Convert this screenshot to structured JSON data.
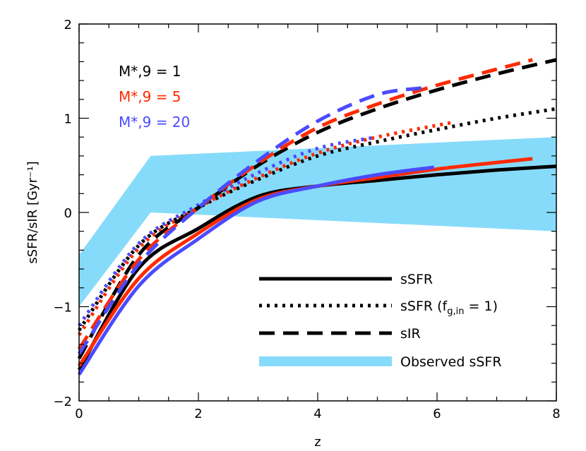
{
  "chart_data": {
    "type": "line",
    "xlabel": "z",
    "ylabel": "sSFR/sIR [Gyr⁻¹]",
    "xlim": [
      0,
      8
    ],
    "ylim": [
      -2,
      2
    ],
    "xticks": [
      "0",
      "2",
      "4",
      "6",
      "8"
    ],
    "yticks": [
      "−2",
      "−1",
      "0",
      "1",
      "2"
    ],
    "xtick_values": [
      0,
      2,
      4,
      6,
      8
    ],
    "ytick_values": [
      -2,
      -1,
      0,
      1,
      2
    ],
    "grid": false,
    "mass_labels": [
      {
        "text": "M*,9 = 1",
        "base": "M",
        "sub": "*,9",
        "rest": " = 1",
        "color": "#000000"
      },
      {
        "text": "M*,9 = 5",
        "base": "M",
        "sub": "*,9",
        "rest": " = 5",
        "color": "#ff2a00"
      },
      {
        "text": "M*,9 = 20",
        "base": "M",
        "sub": "*,9",
        "rest": " = 20",
        "color": "#4b4bff"
      }
    ],
    "legend": {
      "placement": "bottom-right",
      "entries": [
        {
          "label": "sSFR",
          "style": "solid"
        },
        {
          "label": "sSFR (fg,in = 1)",
          "pre": "sSFR (f",
          "sub": "g,in",
          "post": " = 1)",
          "style": "dotted"
        },
        {
          "label": "sIR",
          "style": "dashed"
        },
        {
          "label": "Observed sSFR",
          "style": "band"
        }
      ]
    },
    "band": {
      "color": "#87dbfa",
      "upper": [
        [
          0,
          -0.45
        ],
        [
          1.2,
          0.6
        ],
        [
          8,
          0.8
        ]
      ],
      "lower": [
        [
          0,
          -1.0
        ],
        [
          1.2,
          0.0
        ],
        [
          8,
          -0.2
        ]
      ]
    },
    "series": [
      {
        "mass": 1,
        "kind": "sSFR",
        "style": "solid",
        "color": "#000000",
        "x": [
          0,
          1,
          2,
          3,
          4,
          5,
          6,
          7,
          8
        ],
        "y": [
          -1.67,
          -0.59,
          -0.17,
          0.17,
          0.28,
          0.34,
          0.4,
          0.45,
          0.49
        ]
      },
      {
        "mass": 5,
        "kind": "sSFR",
        "style": "solid",
        "color": "#ff2a00",
        "x": [
          0,
          1,
          2,
          3,
          4,
          5,
          6,
          7,
          7.6
        ],
        "y": [
          -1.63,
          -0.7,
          -0.22,
          0.14,
          0.28,
          0.37,
          0.46,
          0.53,
          0.57
        ]
      },
      {
        "mass": 20,
        "kind": "sSFR",
        "style": "solid",
        "color": "#4b4bff",
        "x": [
          0,
          1,
          2,
          3,
          4,
          5,
          5.95
        ],
        "y": [
          -1.72,
          -0.78,
          -0.28,
          0.12,
          0.28,
          0.4,
          0.48
        ]
      },
      {
        "mass": 1,
        "kind": "sSFR (fg,in = 1)",
        "style": "dotted",
        "color": "#000000",
        "x": [
          0,
          1,
          2,
          3,
          4,
          5,
          6,
          7,
          8
        ],
        "y": [
          -1.25,
          -0.35,
          0.05,
          0.35,
          0.6,
          0.75,
          0.88,
          1.0,
          1.1
        ]
      },
      {
        "mass": 5,
        "kind": "sSFR (fg,in = 1)",
        "style": "dotted",
        "color": "#ff2a00",
        "x": [
          0,
          1,
          2,
          3,
          4,
          5,
          6.3
        ],
        "y": [
          -1.3,
          -0.38,
          0.05,
          0.37,
          0.63,
          0.8,
          0.96
        ]
      },
      {
        "mass": 20,
        "kind": "sSFR (fg,in = 1)",
        "style": "dotted",
        "color": "#4b4bff",
        "x": [
          0,
          1,
          2,
          3,
          4,
          4.9
        ],
        "y": [
          -1.2,
          -0.33,
          0.08,
          0.42,
          0.68,
          0.79
        ]
      },
      {
        "mass": 1,
        "kind": "sIR",
        "style": "dashed",
        "color": "#000000",
        "x": [
          0,
          1,
          2,
          3,
          4,
          5,
          6,
          7,
          8
        ],
        "y": [
          -1.55,
          -0.45,
          0.05,
          0.5,
          0.85,
          1.1,
          1.3,
          1.47,
          1.62
        ]
      },
      {
        "mass": 5,
        "kind": "sIR",
        "style": "dashed",
        "color": "#ff2a00",
        "x": [
          0,
          1,
          2,
          3,
          4,
          5,
          6,
          7,
          7.6
        ],
        "y": [
          -1.45,
          -0.5,
          0.05,
          0.52,
          0.9,
          1.15,
          1.35,
          1.52,
          1.62
        ]
      },
      {
        "mass": 20,
        "kind": "sIR",
        "style": "dashed",
        "color": "#4b4bff",
        "x": [
          0,
          1,
          2,
          3,
          4,
          5,
          5.75
        ],
        "y": [
          -1.5,
          -0.55,
          0.05,
          0.55,
          0.97,
          1.25,
          1.32
        ]
      }
    ]
  }
}
